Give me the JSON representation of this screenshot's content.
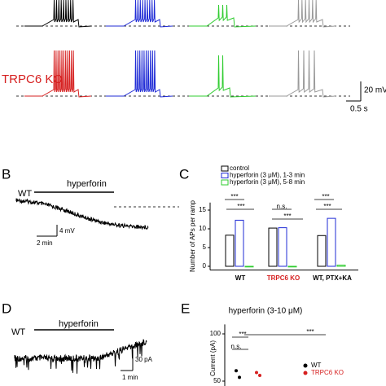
{
  "figure": {
    "panel_a": {
      "group_label": "TRPC6 KO",
      "scale_y": "20 mV",
      "scale_x": "0.5 s"
    },
    "panel_b": {
      "letter": "B",
      "genotype": "WT",
      "drug": "hyperforin",
      "scale_y": "4 mV",
      "scale_x": "2 min"
    },
    "panel_d": {
      "letter": "D",
      "genotype": "WT",
      "drug": "hyperforin",
      "scale_y": "30 pA",
      "scale_x": "1 min"
    }
  },
  "chart_data": [
    {
      "type": "bar",
      "panel_label": "C",
      "ylabel": "Number of APs per ramp",
      "categories": [
        "WT",
        "TRPC6 KO",
        "WT, PTX+KA"
      ],
      "category_colors": [
        "#000000",
        "#d62020",
        "#000000"
      ],
      "series": [
        {
          "name": "control",
          "color": "#000000",
          "values": [
            8.3,
            10.2,
            8.2
          ]
        },
        {
          "name": "hyperforin (3 μM), 1-3 min",
          "color": "#1f2bd6",
          "values": [
            12.3,
            10.3,
            12.8
          ]
        },
        {
          "name": "hyperforin (3 μM), 5-8 min",
          "color": "#2fcc2f",
          "values": [
            0,
            0,
            0.3
          ]
        }
      ],
      "ylim": [
        -1,
        17
      ],
      "yticks": [
        0,
        5,
        10,
        15
      ],
      "annotations": [
        "***",
        "***",
        "n.s.",
        "***",
        "***",
        "***"
      ]
    },
    {
      "type": "strip",
      "panel_label": "E",
      "title": "hyperforin (3-10 μM)",
      "ylabel": "Current (pA)",
      "series": [
        {
          "name": "WT",
          "color": "#000000",
          "values": [
            61,
            54
          ]
        },
        {
          "name": "TRPC6 KO",
          "color": "#d62020",
          "values": [
            59,
            56
          ]
        }
      ],
      "ylim": [
        40,
        110
      ],
      "yticks": [
        50,
        100
      ],
      "annotations": [
        "***",
        "n.s.",
        "***"
      ]
    }
  ]
}
